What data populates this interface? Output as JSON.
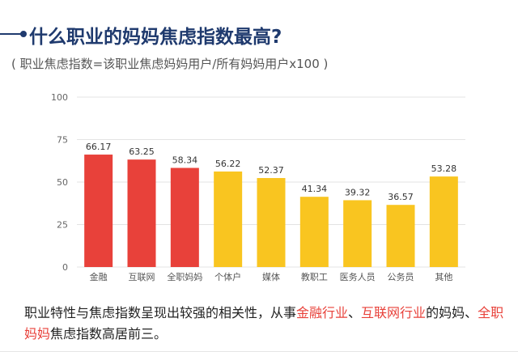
{
  "header": {
    "title": "什么职业的妈妈焦虑指数最高?",
    "subtitle": "( 职业焦虑指数=该职业焦虑妈妈用户/所有妈妈用户x100 )"
  },
  "chart_data": {
    "type": "bar",
    "categories": [
      "金融",
      "互联网",
      "全职妈妈",
      "个体户",
      "媒体",
      "教职工",
      "医务人员",
      "公务员",
      "其他"
    ],
    "values": [
      66.17,
      63.25,
      58.34,
      56.22,
      52.37,
      41.34,
      39.32,
      36.57,
      53.28
    ],
    "value_labels": [
      "66.17",
      "63.25",
      "58.34",
      "56.22",
      "52.37",
      "41.34",
      "39.32",
      "36.57",
      "53.28"
    ],
    "colors": [
      "#e8413a",
      "#e8413a",
      "#e8413a",
      "#f9c520",
      "#f9c520",
      "#f9c520",
      "#f9c520",
      "#f9c520",
      "#f9c520"
    ],
    "ylim": [
      0,
      100
    ],
    "yticks": [
      0,
      25,
      50,
      75,
      100
    ],
    "grid": true,
    "gridline_color": "#e3e3e3",
    "title": "",
    "xlabel": "",
    "ylabel": ""
  },
  "caption": {
    "part1": "职业特性与焦虑指数呈现出较强的相关性，从事",
    "highlight1": "金融行业",
    "sep1": "、",
    "highlight2": "互联网行业",
    "part2": "的妈妈、",
    "highlight3": "全职妈妈",
    "part3": "焦虑指数高居前三。"
  }
}
